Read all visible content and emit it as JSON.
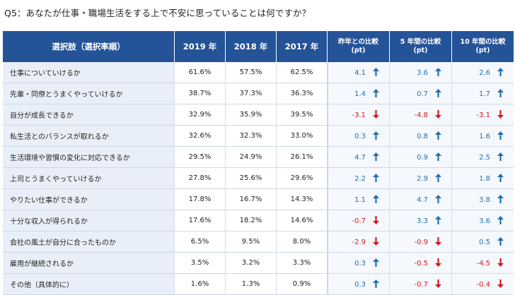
{
  "question": "Q5：あなたが仕事・職場生活をする上で不安に思っていることは何ですか？",
  "headers": {
    "option": "選択肢（選択率順）",
    "y2019": "2019 年",
    "y2018": "2018 年",
    "y2017": "2017 年",
    "diff_prev_line1": "昨年との比較",
    "diff_prev_line2": "(pt)",
    "diff_5y_line1": "5 年間の比較",
    "diff_5y_line2": "(pt)",
    "diff_10y_line1": "10 年間の比較",
    "diff_10y_line2": "(pt)"
  },
  "colors": {
    "header_bg": "#255398",
    "up": "#1f6fb5",
    "down": "#d7191c",
    "label_bg": "#e9eff8"
  },
  "rows": [
    {
      "label": "仕事についていけるか",
      "y2019": "61.6%",
      "y2018": "57.5%",
      "y2017": "62.5%",
      "d1": "4.1",
      "d1dir": "up",
      "d5": "3.6",
      "d5dir": "up",
      "d10": "2.6",
      "d10dir": "up"
    },
    {
      "label": "先輩・同僚とうまくやっていけるか",
      "y2019": "38.7%",
      "y2018": "37.3%",
      "y2017": "36.3%",
      "d1": "1.4",
      "d1dir": "up",
      "d5": "0.7",
      "d5dir": "up",
      "d10": "1.7",
      "d10dir": "up"
    },
    {
      "label": "自分が成長できるか",
      "y2019": "32.9%",
      "y2018": "35.9%",
      "y2017": "39.5%",
      "d1": "-3.1",
      "d1dir": "down",
      "d5": "-4.8",
      "d5dir": "down",
      "d10": "-3.1",
      "d10dir": "down"
    },
    {
      "label": "私生活とのバランスが取れるか",
      "y2019": "32.6%",
      "y2018": "32.3%",
      "y2017": "33.0%",
      "d1": "0.3",
      "d1dir": "up",
      "d5": "0.8",
      "d5dir": "up",
      "d10": "1.6",
      "d10dir": "up"
    },
    {
      "label": "生活環境や習慣の変化に対応できるか",
      "y2019": "29.5%",
      "y2018": "24.9%",
      "y2017": "26.1%",
      "d1": "4.7",
      "d1dir": "up",
      "d5": "0.9",
      "d5dir": "up",
      "d10": "2.5",
      "d10dir": "up"
    },
    {
      "label": "上司とうまくやっていけるか",
      "y2019": "27.8%",
      "y2018": "25.6%",
      "y2017": "29.6%",
      "d1": "2.2",
      "d1dir": "up",
      "d5": "2.9",
      "d5dir": "up",
      "d10": "1.8",
      "d10dir": "up"
    },
    {
      "label": "やりたい仕事ができるか",
      "y2019": "17.8%",
      "y2018": "16.7%",
      "y2017": "14.3%",
      "d1": "1.1",
      "d1dir": "up",
      "d5": "4.7",
      "d5dir": "up",
      "d10": "3.8",
      "d10dir": "up"
    },
    {
      "label": "十分な収入が得られるか",
      "y2019": "17.6%",
      "y2018": "18.2%",
      "y2017": "14.6%",
      "d1": "-0.7",
      "d1dir": "down",
      "d5": "3.3",
      "d5dir": "up",
      "d10": "3.6",
      "d10dir": "up"
    },
    {
      "label": "会社の風土が自分に合ったものか",
      "y2019": "6.5%",
      "y2018": "9.5%",
      "y2017": "8.0%",
      "d1": "-2.9",
      "d1dir": "down",
      "d5": "-0.9",
      "d5dir": "down",
      "d10": "0.5",
      "d10dir": "up"
    },
    {
      "label": "雇用が継続されるか",
      "y2019": "3.5%",
      "y2018": "3.2%",
      "y2017": "3.3%",
      "d1": "0.3",
      "d1dir": "up",
      "d5": "-0.5",
      "d5dir": "down",
      "d10": "-4.5",
      "d10dir": "down"
    },
    {
      "label": "その他（具体的に）",
      "y2019": "1.6%",
      "y2018": "1.3%",
      "y2017": "0.9%",
      "d1": "0.3",
      "d1dir": "up",
      "d5": "-0.7",
      "d5dir": "down",
      "d10": "-0.4",
      "d10dir": "down"
    }
  ]
}
